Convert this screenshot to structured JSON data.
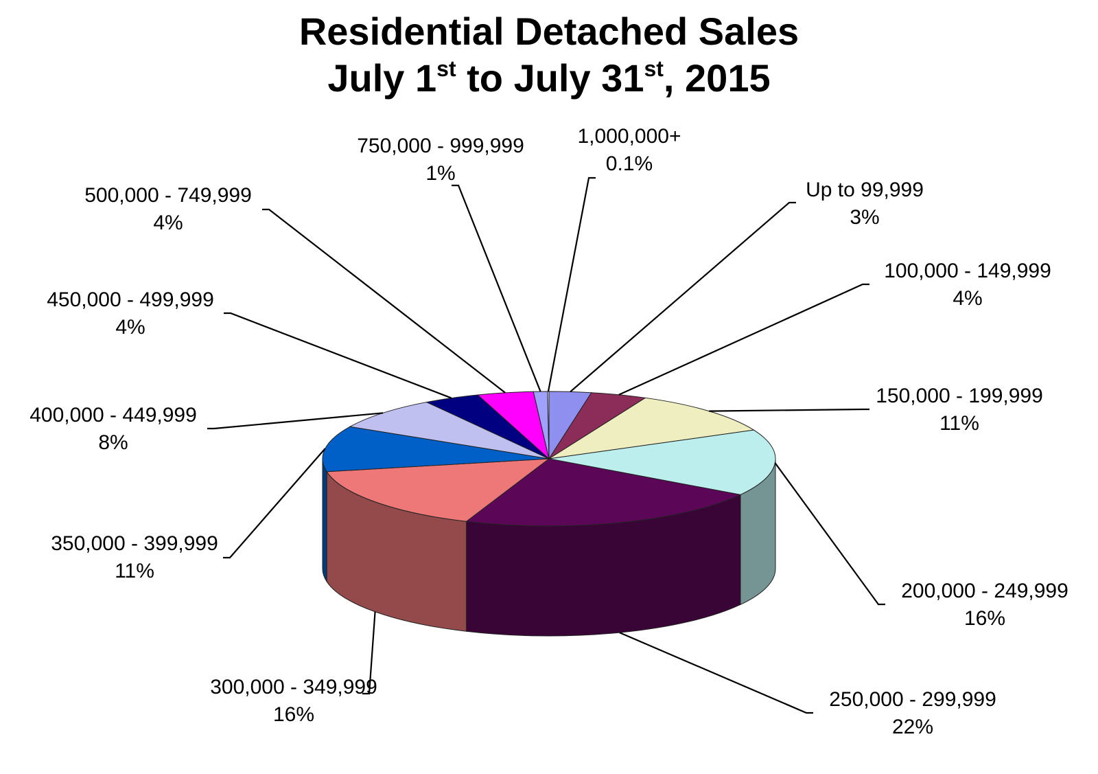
{
  "chart_data": {
    "type": "pie",
    "title": {
      "line1": "Residential Detached Sales",
      "line2": [
        "July 1",
        "st",
        " to July 31",
        "st",
        ", 2015"
      ]
    },
    "slices": [
      {
        "name": "Up to 99,999",
        "value": 3,
        "label": "3%",
        "color": "#8f8ff0"
      },
      {
        "name": "100,000 - 149,999",
        "value": 4,
        "label": "4%",
        "color": "#8c2c58"
      },
      {
        "name": "150,000 - 199,999",
        "value": 11,
        "label": "11%",
        "color": "#eeeec0"
      },
      {
        "name": "200,000 - 249,999",
        "value": 16,
        "label": "16%",
        "color": "#bdeeee"
      },
      {
        "name": "250,000 - 299,999",
        "value": 22,
        "label": "22%",
        "color": "#5c0657"
      },
      {
        "name": "300,000 - 349,999",
        "value": 16,
        "label": "16%",
        "color": "#ee7878"
      },
      {
        "name": "350,000 - 399,999",
        "value": 11,
        "label": "11%",
        "color": "#0060c8"
      },
      {
        "name": "400,000 - 449,999",
        "value": 8,
        "label": "8%",
        "color": "#c0c0f0"
      },
      {
        "name": "450,000 - 499,999",
        "value": 4,
        "label": "4%",
        "color": "#000080"
      },
      {
        "name": "500,000 - 749,999",
        "value": 4,
        "label": "4%",
        "color": "#ff00ff"
      },
      {
        "name": "750,000 - 999,999",
        "value": 1,
        "label": "1%",
        "color": "#a0a0ff"
      },
      {
        "name": "1,000,000+",
        "value": 0.1,
        "label": "0.1%",
        "color": "#ffffff"
      }
    ]
  }
}
